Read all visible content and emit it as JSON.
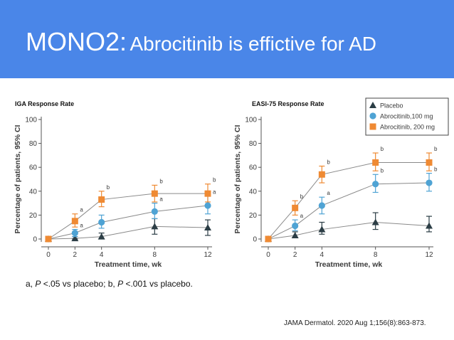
{
  "slide": {
    "title_lead": "MONO2:",
    "title_rest": "Abrocitinib is effictive for AD",
    "footnote": {
      "part1": "a, ",
      "p1": "P",
      "part2": " <.05 vs placebo; b, ",
      "p2": "P",
      "part3": " <.001 vs placebo."
    },
    "citation": "JAMA Dermatol. 2020 Aug 1;156(8):863-873."
  },
  "colors": {
    "banner": "#4a86e8",
    "placebo": "#2b3d45",
    "abro100": "#4fa3d4",
    "abro200": "#ef8a33",
    "line": "#8a8a8a"
  },
  "legend": [
    {
      "name": "Placebo",
      "marker": "triangle",
      "color": "#2b3d45"
    },
    {
      "name": "Abrocitinib,100 mg",
      "marker": "circle",
      "color": "#4fa3d4"
    },
    {
      "name": "Abrocitinib, 200 mg",
      "marker": "square",
      "color": "#ef8a33"
    }
  ],
  "chart_data": [
    {
      "type": "line",
      "title": "IGA Response Rate",
      "xlabel": "Treatment time, wk",
      "ylabel": "Percentage of patients, 95% CI",
      "x": [
        0,
        2,
        4,
        8,
        12
      ],
      "xticks": [
        "0",
        "2",
        "4",
        "8",
        "12"
      ],
      "yticks": [
        "0",
        "20",
        "40",
        "60",
        "80",
        "100"
      ],
      "ylim": [
        0,
        100
      ],
      "grid": false,
      "series": [
        {
          "name": "Placebo",
          "values": [
            0,
            0.5,
            2,
            10.5,
            9.5
          ],
          "ci_low": [
            0,
            0,
            0,
            4,
            3
          ],
          "ci_high": [
            0,
            2,
            5,
            17,
            16
          ],
          "labels": [
            "",
            "",
            "",
            "",
            ""
          ]
        },
        {
          "name": "Abrocitinib,100 mg",
          "values": [
            0,
            5,
            14,
            23,
            28
          ],
          "ci_low": [
            0,
            2,
            9,
            17,
            21
          ],
          "ci_high": [
            0,
            8,
            20,
            30,
            36
          ],
          "labels": [
            "",
            "a",
            "",
            "a",
            "a"
          ]
        },
        {
          "name": "Abrocitinib, 200 mg",
          "values": [
            0,
            15,
            33,
            38,
            38
          ],
          "ci_low": [
            0,
            10,
            27,
            31,
            31
          ],
          "ci_high": [
            0,
            21,
            40,
            45,
            46
          ],
          "labels": [
            "",
            "a",
            "b",
            "b",
            "b"
          ]
        }
      ]
    },
    {
      "type": "line",
      "title": "EASI-75 Response Rate",
      "xlabel": "Treatment time, wk",
      "ylabel": "Percentage of patients, 95% CI",
      "x": [
        0,
        2,
        4,
        8,
        12
      ],
      "xticks": [
        "0",
        "2",
        "4",
        "8",
        "12"
      ],
      "yticks": [
        "0",
        "20",
        "40",
        "60",
        "80",
        "100"
      ],
      "ylim": [
        0,
        100
      ],
      "grid": false,
      "legend_position": "top-right",
      "series": [
        {
          "name": "Placebo",
          "values": [
            0,
            3,
            8,
            14,
            11
          ],
          "ci_low": [
            0,
            1,
            4,
            8,
            6
          ],
          "ci_high": [
            0,
            6,
            14,
            22,
            19
          ],
          "labels": [
            "",
            "",
            "",
            "",
            ""
          ]
        },
        {
          "name": "Abrocitinib,100 mg",
          "values": [
            0,
            11,
            28,
            46,
            47
          ],
          "ci_low": [
            0,
            7,
            21,
            39,
            40
          ],
          "ci_high": [
            0,
            16,
            35,
            54,
            55
          ],
          "labels": [
            "",
            "a",
            "a",
            "b",
            "b"
          ]
        },
        {
          "name": "Abrocitinib, 200 mg",
          "values": [
            0,
            26,
            54,
            64,
            64
          ],
          "ci_low": [
            0,
            20,
            47,
            57,
            57
          ],
          "ci_high": [
            0,
            32,
            61,
            72,
            72
          ],
          "labels": [
            "",
            "b",
            "b",
            "b",
            "b"
          ]
        }
      ]
    }
  ]
}
